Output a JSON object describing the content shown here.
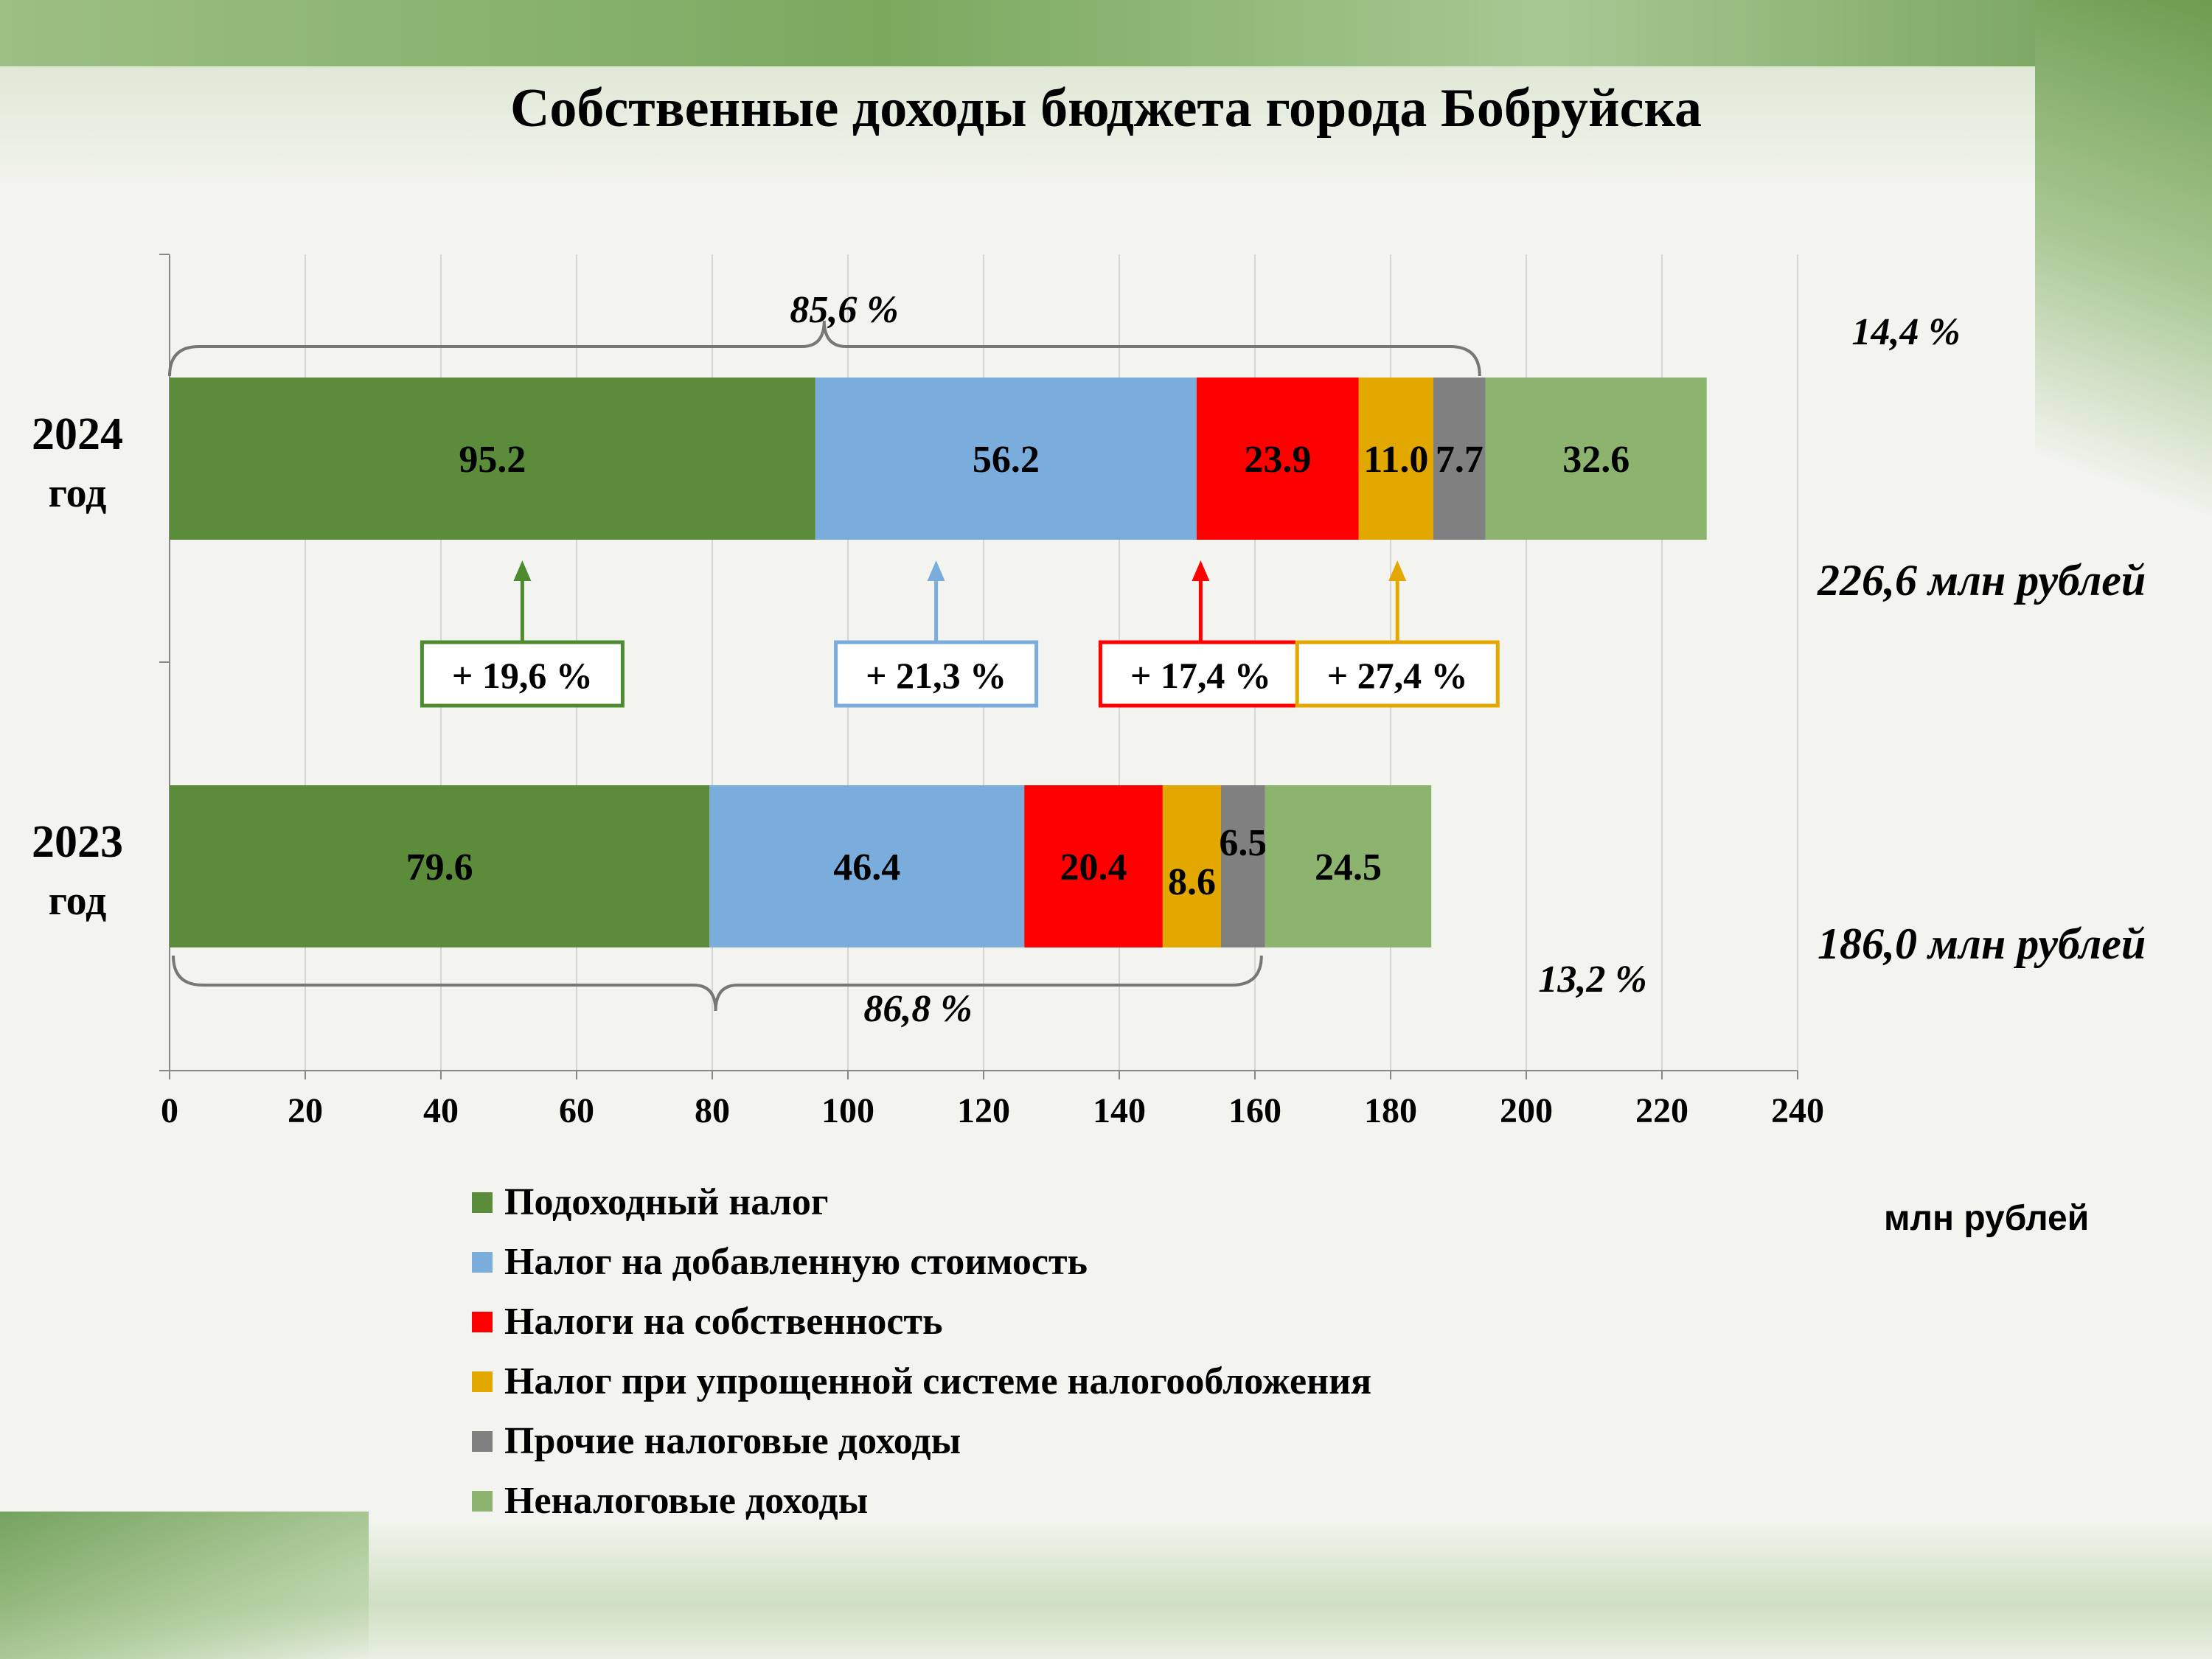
{
  "chart_data": {
    "type": "bar",
    "orientation": "horizontal",
    "stacked": true,
    "title": "Собственные доходы бюджета города Бобруйска",
    "categories": [
      "2024 год",
      "2023 год"
    ],
    "series": [
      {
        "name": "Подоходный налог",
        "color": "#5b8c3a",
        "values": [
          95.2,
          79.6
        ]
      },
      {
        "name": "Налог на добавленную стоимость",
        "color": "#7aacdc",
        "values": [
          56.2,
          46.4
        ]
      },
      {
        "name": "Налоги на собственность",
        "color": "#ff0000",
        "values": [
          23.9,
          20.4
        ]
      },
      {
        "name": "Налог при упрощенной системе налогообложения",
        "color": "#e3a800",
        "values": [
          11.0,
          8.6
        ]
      },
      {
        "name": "Прочие налоговые доходы",
        "color": "#808080",
        "values": [
          7.7,
          6.5
        ]
      },
      {
        "name": "Неналоговые доходы",
        "color": "#8db46f",
        "values": [
          32.6,
          24.5
        ]
      }
    ],
    "xlim": [
      0,
      240
    ],
    "xticks": [
      "0",
      "20",
      "40",
      "60",
      "80",
      "100",
      "120",
      "140",
      "160",
      "180",
      "200",
      "220",
      "240"
    ],
    "xlabel": "млн рублей",
    "grid": true,
    "legend_position": "bottom-left",
    "totals": [
      "226,6 млн рублей",
      "186,0 млн рублей"
    ],
    "bracket_labels": {
      "y2024_tax": "85,6 %",
      "y2024_nontax": "14,4 %",
      "y2023_tax": "86,8 %",
      "y2023_nontax": "13,2 %"
    },
    "growth_labels": [
      {
        "series": 0,
        "text": "+ 19,6 %"
      },
      {
        "series": 1,
        "text": "+ 21,3 %"
      },
      {
        "series": 2,
        "text": "+ 17,4 %"
      },
      {
        "series": 3,
        "text": "+ 27,4 %"
      }
    ]
  }
}
